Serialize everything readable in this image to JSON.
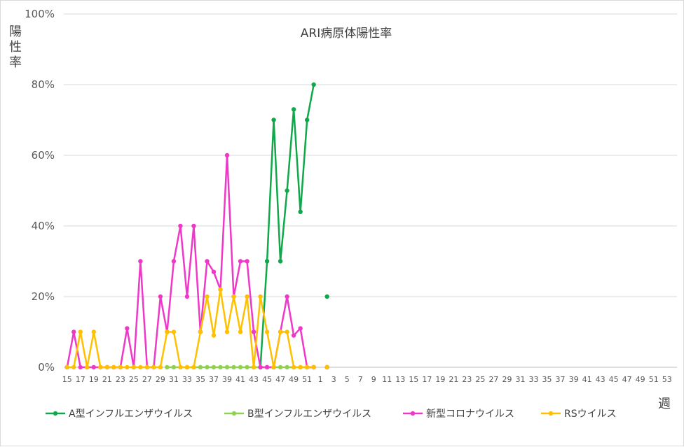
{
  "chart_data": {
    "type": "line",
    "title": "ARI病原体陽性率",
    "ylabel": "陽性率",
    "xlabel": "週",
    "ylim": [
      0,
      100
    ],
    "y_ticks": [
      "0%",
      "20%",
      "40%",
      "60%",
      "80%",
      "100%"
    ],
    "x_ticks": [
      "15",
      "17",
      "19",
      "21",
      "23",
      "25",
      "27",
      "29",
      "31",
      "33",
      "35",
      "37",
      "39",
      "41",
      "43",
      "45",
      "47",
      "49",
      "51",
      "1",
      "3",
      "5",
      "7",
      "9",
      "11",
      "13",
      "15",
      "17",
      "19",
      "21",
      "23",
      "25",
      "27",
      "29",
      "31",
      "33",
      "35",
      "37",
      "39",
      "41",
      "43",
      "45",
      "47",
      "49",
      "51",
      "53"
    ],
    "x_count": 92,
    "grid": true,
    "legend_position": "bottom",
    "series": [
      {
        "name": "A型インフルエンザウイルス",
        "color": "#0fa84a",
        "values": [
          null,
          null,
          null,
          null,
          null,
          null,
          null,
          null,
          null,
          null,
          null,
          null,
          null,
          null,
          null,
          null,
          null,
          null,
          null,
          null,
          null,
          null,
          null,
          null,
          null,
          null,
          null,
          null,
          null,
          0,
          30,
          70,
          30,
          50,
          73,
          44,
          70,
          80,
          null,
          20
        ]
      },
      {
        "name": "B型インフルエンザウイルス",
        "color": "#92d050",
        "values": [
          null,
          null,
          null,
          null,
          null,
          null,
          null,
          null,
          null,
          null,
          null,
          null,
          null,
          null,
          null,
          0,
          0,
          0,
          0,
          0,
          0,
          0,
          0,
          0,
          0,
          0,
          0,
          0,
          0,
          0,
          0,
          0,
          0,
          0,
          0,
          0,
          0,
          0,
          null,
          0
        ]
      },
      {
        "name": "新型コロナウイルス",
        "color": "#f038c8",
        "values": [
          0,
          10,
          0,
          0,
          0,
          0,
          0,
          0,
          0,
          11,
          0,
          30,
          0,
          0,
          20,
          10,
          30,
          40,
          20,
          40,
          10,
          30,
          27,
          22,
          60,
          20,
          30,
          30,
          10,
          0,
          0,
          0,
          10,
          20,
          9,
          11,
          0,
          0,
          null,
          0
        ]
      },
      {
        "name": "RSウイルス",
        "color": "#ffc000",
        "values": [
          0,
          0,
          10,
          0,
          10,
          0,
          0,
          0,
          0,
          0,
          0,
          0,
          0,
          0,
          0,
          10,
          10,
          0,
          0,
          0,
          10,
          20,
          9,
          22,
          10,
          20,
          10,
          20,
          0,
          20,
          10,
          0,
          10,
          10,
          0,
          0,
          0,
          0,
          null,
          0
        ]
      }
    ]
  }
}
